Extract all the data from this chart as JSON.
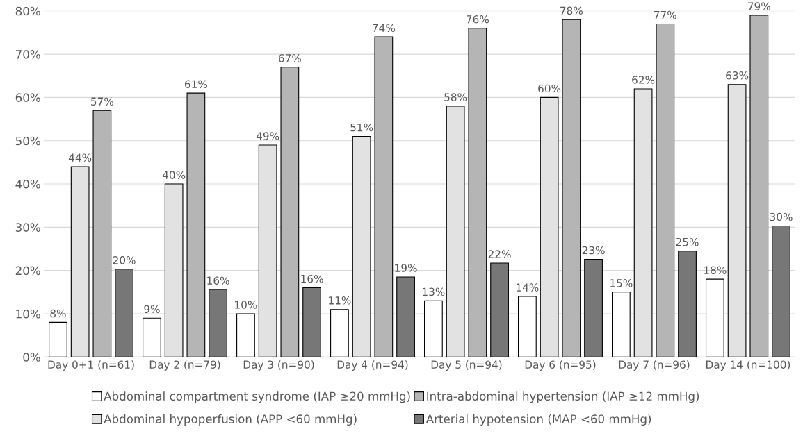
{
  "chart_data": {
    "type": "bar",
    "categories": [
      "Day 0+1 (n=61)",
      "Day 2 (n=79)",
      "Day 3 (n=90)",
      "Day 4 (n=94)",
      "Day 5 (n=94)",
      "Day 6 (n=95)",
      "Day 7 (n=96)",
      "Day 14 (n=100)"
    ],
    "series": [
      {
        "name": "Abdominal compartment syndrome (IAP ≥20 mmHg)",
        "color": "#ffffff",
        "values": [
          8,
          9,
          10,
          11,
          13,
          14,
          15,
          18
        ],
        "value_labels": [
          "8%",
          "9%",
          "10%",
          "11%",
          "13%",
          "14%",
          "15%",
          "18%"
        ]
      },
      {
        "name": "Abdominal hypoperfusion (APP <60 mmHg)",
        "color": "#e2e2e2",
        "values": [
          44,
          40,
          49,
          51,
          58,
          60,
          62,
          63
        ],
        "value_labels": [
          "44%",
          "40%",
          "49%",
          "51%",
          "58%",
          "60%",
          "62%",
          "63%"
        ]
      },
      {
        "name": "Intra-abdominal hypertension (IAP ≥12 mmHg)",
        "color": "#b5b5b5",
        "values": [
          57,
          61,
          67,
          74,
          76,
          78,
          77,
          79
        ],
        "value_labels": [
          "57%",
          "61%",
          "67%",
          "74%",
          "76%",
          "78%",
          "77%",
          "79%"
        ]
      },
      {
        "name": "Arterial hypotension (MAP <60 mmHg)",
        "color": "#777777",
        "values": [
          20.3,
          15.6,
          16,
          18.5,
          21.7,
          22.6,
          24.5,
          30.3
        ],
        "value_labels": [
          "20%",
          "16%",
          "16%",
          "19%",
          "22%",
          "23%",
          "25%",
          "30%"
        ]
      }
    ],
    "ylim": [
      0,
      80
    ],
    "yticks": [
      {
        "value": 0,
        "label": "0%"
      },
      {
        "value": 10,
        "label": "10%"
      },
      {
        "value": 20,
        "label": "20%"
      },
      {
        "value": 30,
        "label": "30%"
      },
      {
        "value": 40,
        "label": "40%"
      },
      {
        "value": 50,
        "label": "50%"
      },
      {
        "value": 60,
        "label": "60%"
      },
      {
        "value": 70,
        "label": "70%"
      },
      {
        "value": 80,
        "label": "80%"
      }
    ],
    "grid": "y",
    "legend": "bottom"
  }
}
